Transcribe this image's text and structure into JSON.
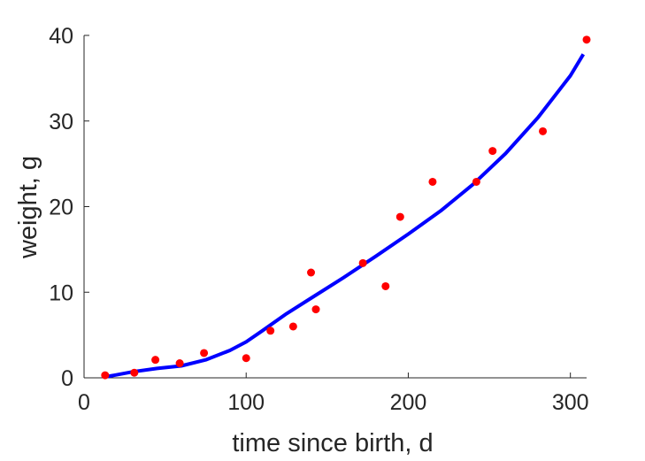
{
  "chart_data": {
    "type": "scatter",
    "title": "",
    "xlabel": "time since birth, d",
    "ylabel": "weight, g",
    "xlim": [
      0,
      310
    ],
    "ylim": [
      0,
      40
    ],
    "xticks": [
      0,
      100,
      200,
      300
    ],
    "yticks": [
      0,
      10,
      20,
      30,
      40
    ],
    "grid": false,
    "legend": "none",
    "colors": {
      "points": "#ff0000",
      "curve": "#0000ff",
      "axis": "#262626"
    },
    "series": [
      {
        "kind": "points",
        "x": [
          13,
          31,
          44,
          59,
          74,
          100,
          115,
          129,
          140,
          143,
          172,
          186,
          195,
          215,
          242,
          252,
          283,
          310
        ],
        "y": [
          0.3,
          0.6,
          2.1,
          1.7,
          2.9,
          2.3,
          5.5,
          6.0,
          12.3,
          8.0,
          13.4,
          10.7,
          18.8,
          22.9,
          22.9,
          26.5,
          28.8,
          39.5
        ]
      },
      {
        "kind": "fitted-line",
        "x": [
          13,
          30,
          45,
          60,
          75,
          90,
          100,
          110,
          125,
          140,
          160,
          180,
          200,
          220,
          240,
          260,
          280,
          300,
          308
        ],
        "y": [
          0.1,
          0.7,
          1.1,
          1.4,
          2.1,
          3.2,
          4.2,
          5.5,
          7.5,
          9.3,
          11.7,
          14.2,
          16.8,
          19.5,
          22.6,
          26.2,
          30.4,
          35.3,
          37.8
        ]
      }
    ]
  }
}
